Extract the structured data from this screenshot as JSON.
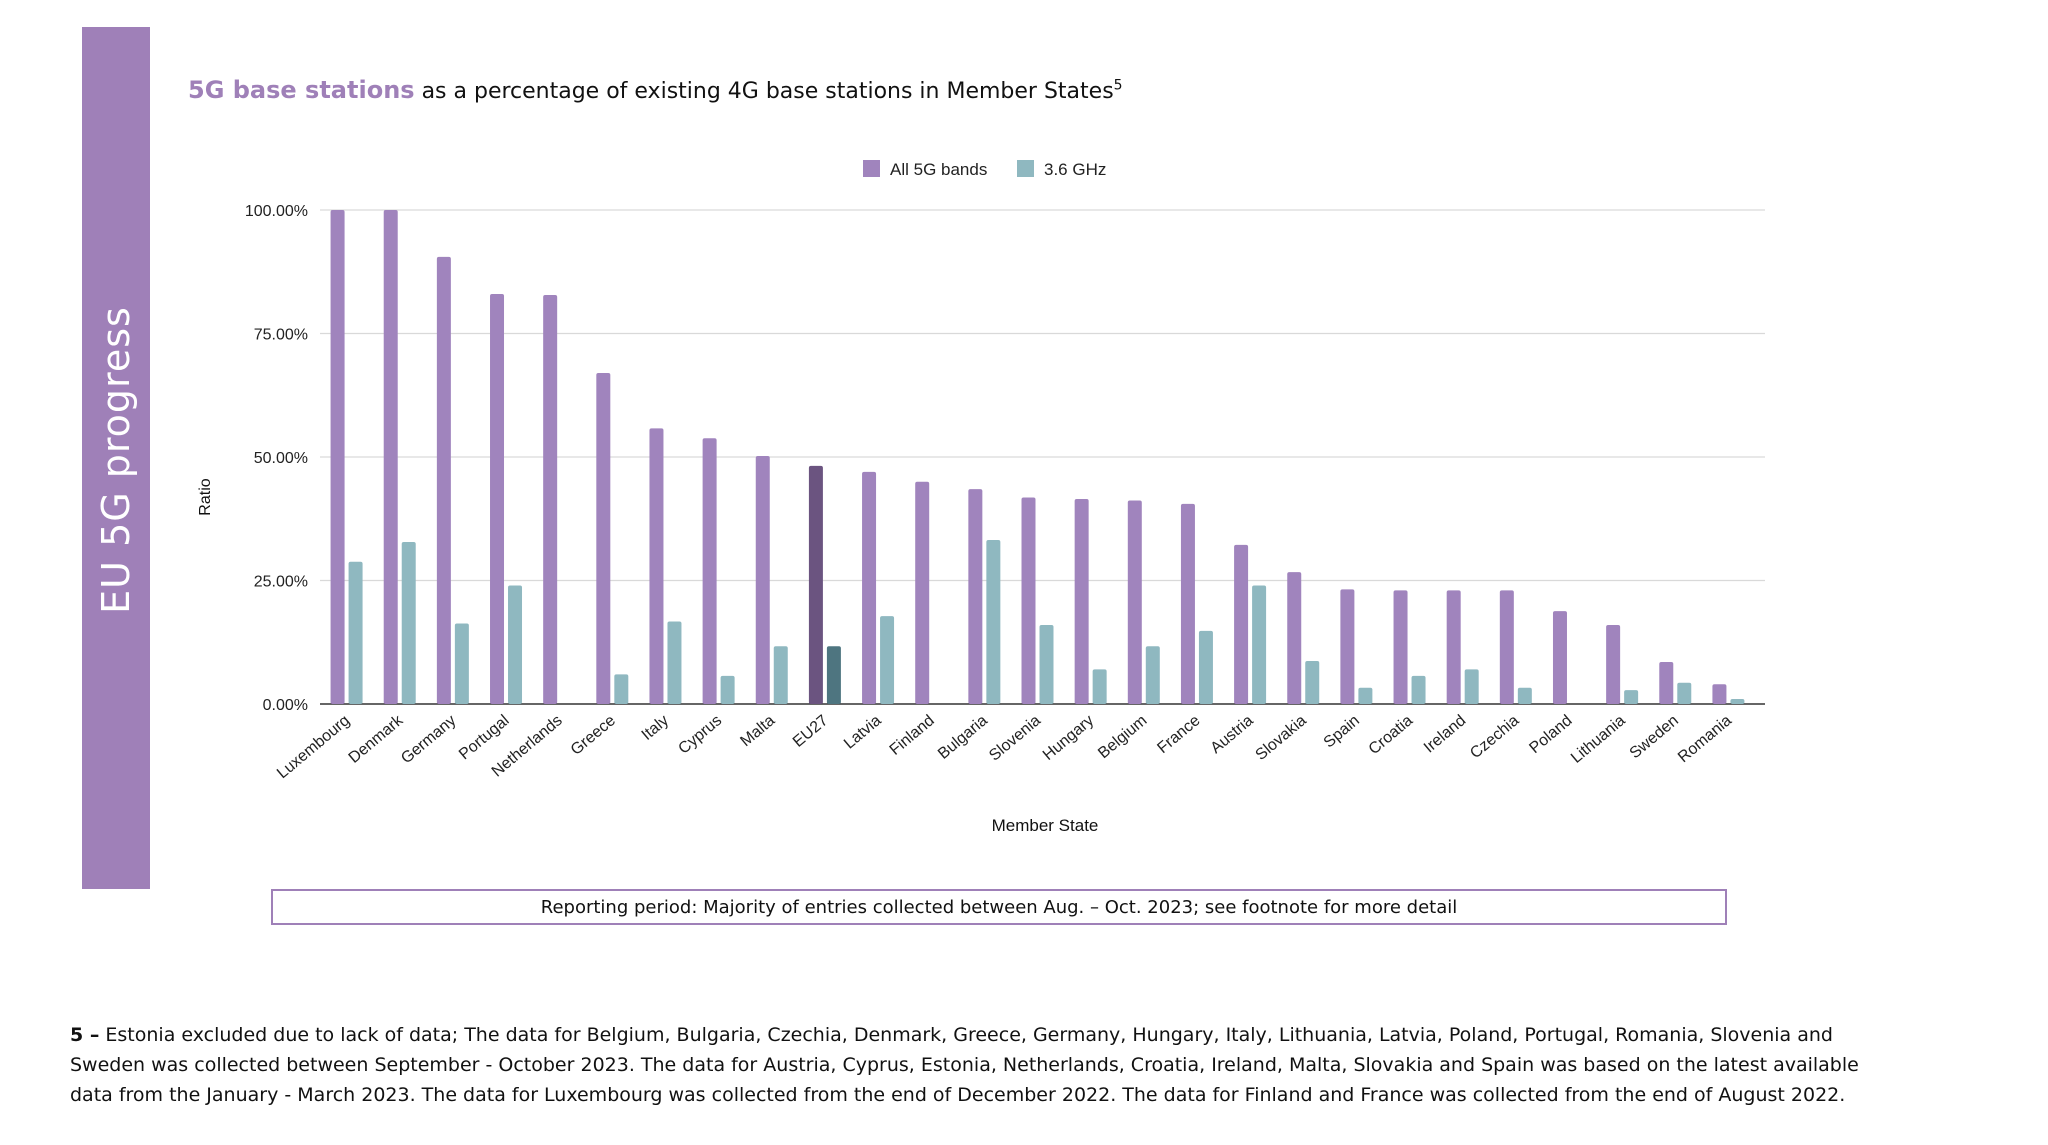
{
  "side_title": "EU 5G progress",
  "title": {
    "highlight": "5G base stations",
    "rest": "as a percentage of existing 4G base stations in Member States",
    "footnote_ref": "5"
  },
  "reporting_period": "Reporting period: Majority of entries collected between Aug. – Oct. 2023; see footnote for more detail",
  "footnote": {
    "marker": "5 –",
    "text": "Estonia excluded due to lack of data; The data for Belgium, Bulgaria, Czechia, Denmark, Greece, Germany, Hungary, Italy, Lithuania, Latvia, Poland, Portugal, Romania, Slovenia and Sweden was collected between September - October 2023. The data for Austria, Cyprus, Estonia, Netherlands, Croatia, Ireland, Malta, Slovakia and Spain was based on the latest available data from the January - March 2023. The data for Luxembourg was collected from the end of December 2022. The data for Finland and France was collected from the end of August 2022."
  },
  "chart_data": {
    "type": "bar",
    "xlabel": "Member State",
    "ylabel": "Ratio",
    "ylim": [
      0,
      100
    ],
    "yticks": [
      "0.00%",
      "25.00%",
      "50.00%",
      "75.00%",
      "100.00%"
    ],
    "legend_position": "top-center",
    "grid": true,
    "highlight_category": "EU27",
    "colors": {
      "all_5g": "#a084bd",
      "ghz36": "#8fb8c0",
      "all_5g_highlight": "#6b5480",
      "ghz36_highlight": "#4e7580",
      "grid": "#d9d9d9"
    },
    "categories": [
      "Luxembourg",
      "Denmark",
      "Germany",
      "Portugal",
      "Netherlands",
      "Greece",
      "Italy",
      "Cyprus",
      "Malta",
      "EU27",
      "Latvia",
      "Finland",
      "Bulgaria",
      "Slovenia",
      "Hungary",
      "Belgium",
      "France",
      "Austria",
      "Slovakia",
      "Spain",
      "Croatia",
      "Ireland",
      "Czechia",
      "Poland",
      "Lithuania",
      "Sweden",
      "Romania"
    ],
    "series": [
      {
        "name": "All 5G bands",
        "values": [
          100,
          100,
          90.5,
          83,
          82.8,
          67,
          55.8,
          53.8,
          50.2,
          48.2,
          47,
          45,
          43.5,
          41.8,
          41.5,
          41.2,
          40.5,
          32.2,
          26.7,
          23.2,
          23,
          23,
          23,
          18.8,
          16,
          8.5,
          4
        ]
      },
      {
        "name": "3.6 GHz",
        "values": [
          28.8,
          32.8,
          16.3,
          24,
          null,
          6,
          16.7,
          5.7,
          11.7,
          11.7,
          17.8,
          null,
          33.2,
          16,
          7,
          11.7,
          14.8,
          24,
          8.7,
          3.3,
          5.7,
          7,
          3.3,
          null,
          2.8,
          4.3,
          1
        ]
      }
    ]
  }
}
